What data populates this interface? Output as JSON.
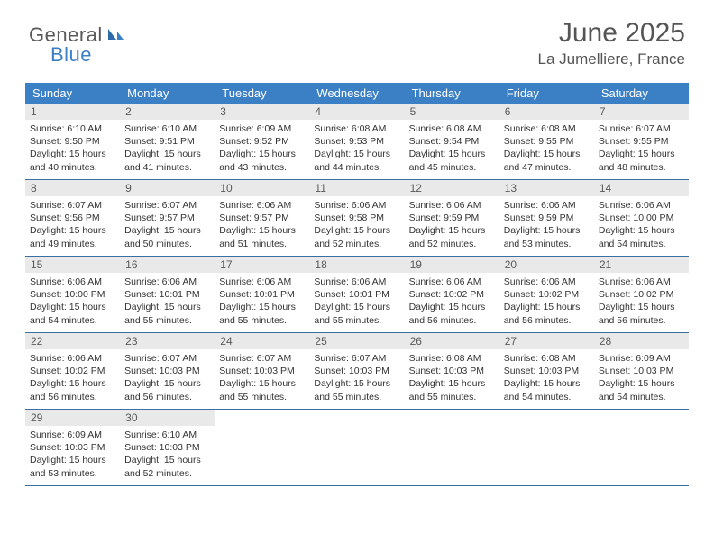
{
  "branding": {
    "logo_word1": "General",
    "logo_word2": "Blue",
    "logo_color_gray": "#5a5a5a",
    "logo_color_blue": "#3b7fc4"
  },
  "header": {
    "month_title": "June 2025",
    "location": "La Jumelliere, France"
  },
  "styling": {
    "header_bg": "#3b7fc4",
    "header_text": "#ffffff",
    "daynum_bg": "#e9e9e9",
    "daynum_text": "#5a5a5a",
    "row_divider": "#3b6fa0",
    "body_text": "#333333",
    "page_bg": "#ffffff",
    "day_header_fontsize": 13,
    "daynum_fontsize": 12,
    "cell_fontsize": 10.5,
    "title_fontsize": 30,
    "location_fontsize": 17
  },
  "day_names": [
    "Sunday",
    "Monday",
    "Tuesday",
    "Wednesday",
    "Thursday",
    "Friday",
    "Saturday"
  ],
  "weeks": [
    [
      {
        "n": "1",
        "sr": "6:10 AM",
        "ss": "9:50 PM",
        "dl": "15 hours and 40 minutes."
      },
      {
        "n": "2",
        "sr": "6:10 AM",
        "ss": "9:51 PM",
        "dl": "15 hours and 41 minutes."
      },
      {
        "n": "3",
        "sr": "6:09 AM",
        "ss": "9:52 PM",
        "dl": "15 hours and 43 minutes."
      },
      {
        "n": "4",
        "sr": "6:08 AM",
        "ss": "9:53 PM",
        "dl": "15 hours and 44 minutes."
      },
      {
        "n": "5",
        "sr": "6:08 AM",
        "ss": "9:54 PM",
        "dl": "15 hours and 45 minutes."
      },
      {
        "n": "6",
        "sr": "6:08 AM",
        "ss": "9:55 PM",
        "dl": "15 hours and 47 minutes."
      },
      {
        "n": "7",
        "sr": "6:07 AM",
        "ss": "9:55 PM",
        "dl": "15 hours and 48 minutes."
      }
    ],
    [
      {
        "n": "8",
        "sr": "6:07 AM",
        "ss": "9:56 PM",
        "dl": "15 hours and 49 minutes."
      },
      {
        "n": "9",
        "sr": "6:07 AM",
        "ss": "9:57 PM",
        "dl": "15 hours and 50 minutes."
      },
      {
        "n": "10",
        "sr": "6:06 AM",
        "ss": "9:57 PM",
        "dl": "15 hours and 51 minutes."
      },
      {
        "n": "11",
        "sr": "6:06 AM",
        "ss": "9:58 PM",
        "dl": "15 hours and 52 minutes."
      },
      {
        "n": "12",
        "sr": "6:06 AM",
        "ss": "9:59 PM",
        "dl": "15 hours and 52 minutes."
      },
      {
        "n": "13",
        "sr": "6:06 AM",
        "ss": "9:59 PM",
        "dl": "15 hours and 53 minutes."
      },
      {
        "n": "14",
        "sr": "6:06 AM",
        "ss": "10:00 PM",
        "dl": "15 hours and 54 minutes."
      }
    ],
    [
      {
        "n": "15",
        "sr": "6:06 AM",
        "ss": "10:00 PM",
        "dl": "15 hours and 54 minutes."
      },
      {
        "n": "16",
        "sr": "6:06 AM",
        "ss": "10:01 PM",
        "dl": "15 hours and 55 minutes."
      },
      {
        "n": "17",
        "sr": "6:06 AM",
        "ss": "10:01 PM",
        "dl": "15 hours and 55 minutes."
      },
      {
        "n": "18",
        "sr": "6:06 AM",
        "ss": "10:01 PM",
        "dl": "15 hours and 55 minutes."
      },
      {
        "n": "19",
        "sr": "6:06 AM",
        "ss": "10:02 PM",
        "dl": "15 hours and 56 minutes."
      },
      {
        "n": "20",
        "sr": "6:06 AM",
        "ss": "10:02 PM",
        "dl": "15 hours and 56 minutes."
      },
      {
        "n": "21",
        "sr": "6:06 AM",
        "ss": "10:02 PM",
        "dl": "15 hours and 56 minutes."
      }
    ],
    [
      {
        "n": "22",
        "sr": "6:06 AM",
        "ss": "10:02 PM",
        "dl": "15 hours and 56 minutes."
      },
      {
        "n": "23",
        "sr": "6:07 AM",
        "ss": "10:03 PM",
        "dl": "15 hours and 56 minutes."
      },
      {
        "n": "24",
        "sr": "6:07 AM",
        "ss": "10:03 PM",
        "dl": "15 hours and 55 minutes."
      },
      {
        "n": "25",
        "sr": "6:07 AM",
        "ss": "10:03 PM",
        "dl": "15 hours and 55 minutes."
      },
      {
        "n": "26",
        "sr": "6:08 AM",
        "ss": "10:03 PM",
        "dl": "15 hours and 55 minutes."
      },
      {
        "n": "27",
        "sr": "6:08 AM",
        "ss": "10:03 PM",
        "dl": "15 hours and 54 minutes."
      },
      {
        "n": "28",
        "sr": "6:09 AM",
        "ss": "10:03 PM",
        "dl": "15 hours and 54 minutes."
      }
    ],
    [
      {
        "n": "29",
        "sr": "6:09 AM",
        "ss": "10:03 PM",
        "dl": "15 hours and 53 minutes."
      },
      {
        "n": "30",
        "sr": "6:10 AM",
        "ss": "10:03 PM",
        "dl": "15 hours and 52 minutes."
      },
      null,
      null,
      null,
      null,
      null
    ]
  ],
  "labels": {
    "sunrise": "Sunrise:",
    "sunset": "Sunset:",
    "daylight": "Daylight:"
  }
}
